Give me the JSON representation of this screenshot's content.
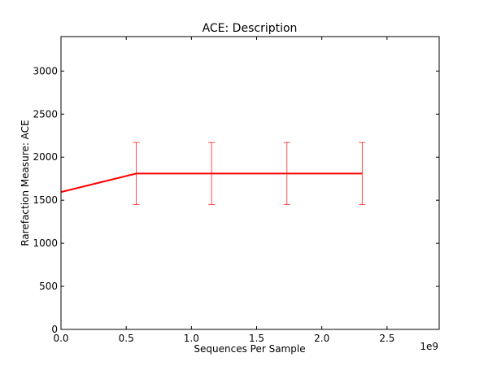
{
  "chart_data": {
    "type": "line",
    "title": "ACE: Description",
    "xlabel": "Sequences Per Sample",
    "ylabel": "Rarefaction Measure: ACE",
    "x_offset_label": "1e9",
    "xlim": [
      0,
      2.9
    ],
    "ylim": [
      0,
      3400
    ],
    "x_ticks": [
      0.0,
      0.5,
      1.0,
      1.5,
      2.0,
      2.5
    ],
    "x_tick_labels": [
      "0.0",
      "0.5",
      "1.0",
      "1.5",
      "2.0",
      "2.5"
    ],
    "y_ticks": [
      0,
      500,
      1000,
      1500,
      2000,
      2500,
      3000
    ],
    "y_tick_labels": [
      "0",
      "500",
      "1000",
      "1500",
      "2000",
      "2500",
      "3000"
    ],
    "grid": false,
    "series": [
      {
        "color": "#ff0000",
        "x": [
          0.0,
          0.577,
          1.155,
          1.732,
          2.31
        ],
        "y": [
          1595,
          1810,
          1810,
          1810,
          1810
        ],
        "error_low": [
          null,
          1450,
          1450,
          1450,
          1450
        ],
        "error_high": [
          null,
          2170,
          2170,
          2170,
          2170
        ]
      }
    ]
  }
}
